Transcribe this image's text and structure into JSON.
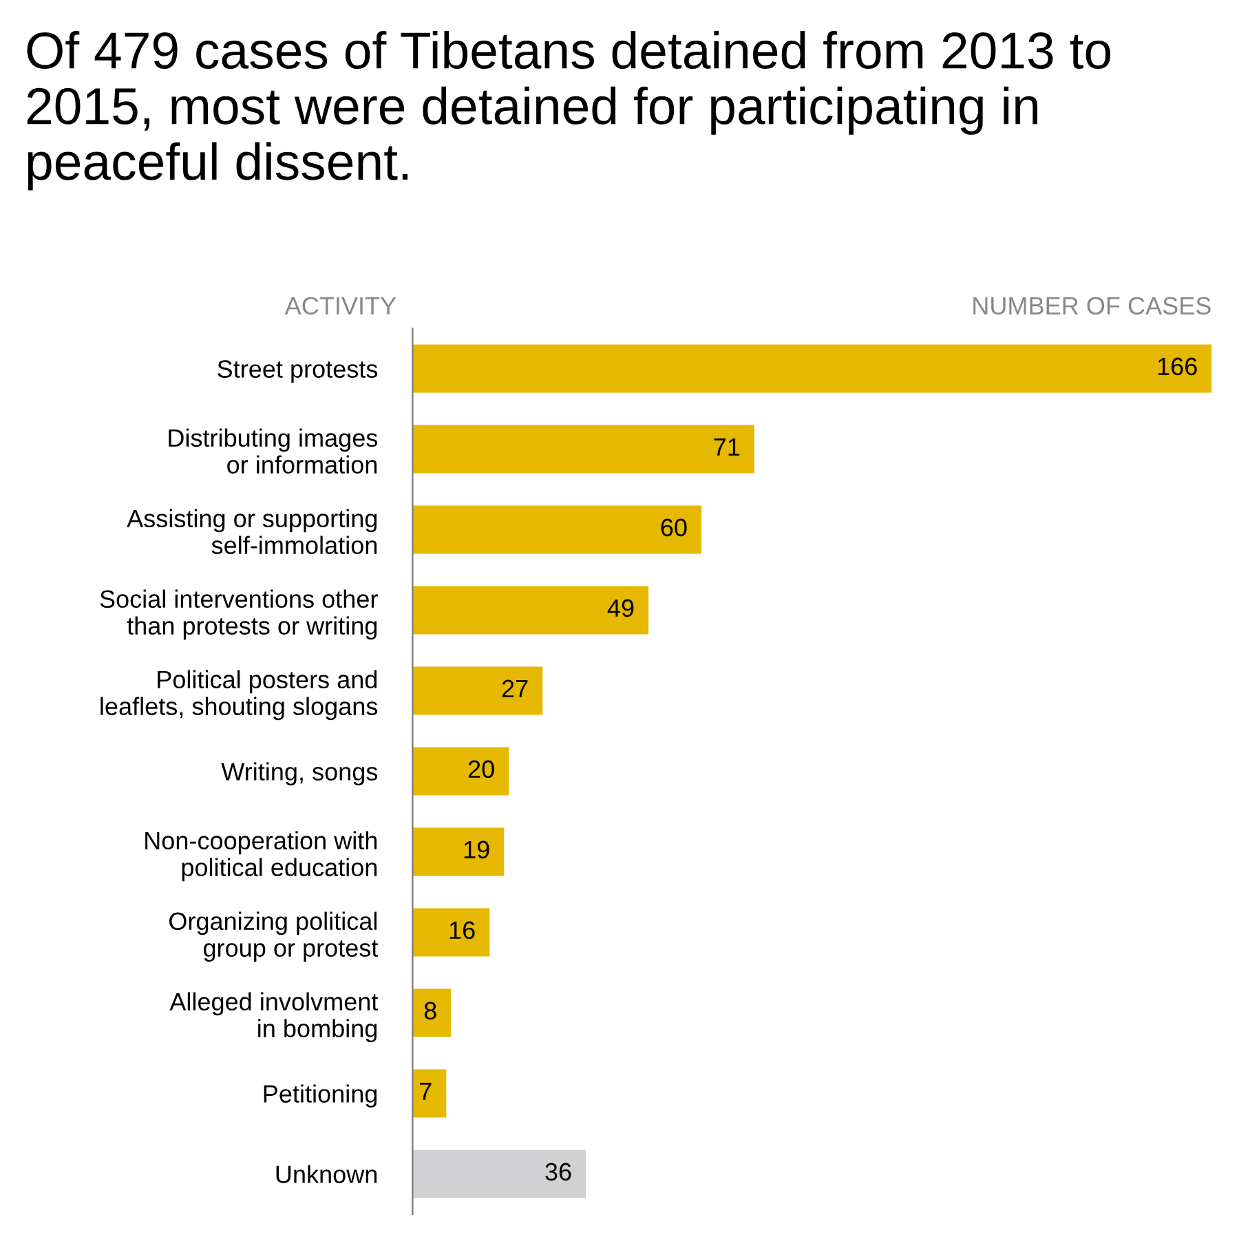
{
  "chart_data": {
    "type": "bar",
    "orientation": "horizontal",
    "title": "Of 479 cases of Tibetans detained from 2013 to 2015, most were detained for participating in peaceful dissent.",
    "ylabel": "ACTIVITY",
    "xlabel": "NUMBER OF CASES",
    "categories": [
      "Street protests",
      "Distributing images\nor information",
      "Assisting or supporting\nself-immolation",
      "Social interventions other\nthan protests or writing",
      "Political posters and\nleaflets, shouting slogans",
      "Writing, songs",
      "Non-cooperation with\npolitical education",
      "Organizing political\ngroup or protest",
      "Alleged involvment\nin bombing",
      "Petitioning",
      "Unknown"
    ],
    "values": [
      166,
      71,
      60,
      49,
      27,
      20,
      19,
      16,
      8,
      7,
      36
    ],
    "colors": [
      "#e6b800",
      "#e6b800",
      "#e6b800",
      "#e6b800",
      "#e6b800",
      "#e6b800",
      "#e6b800",
      "#e6b800",
      "#e6b800",
      "#e6b800",
      "#d1d1d3"
    ],
    "data_labels": true,
    "grid": false,
    "legend": false
  }
}
